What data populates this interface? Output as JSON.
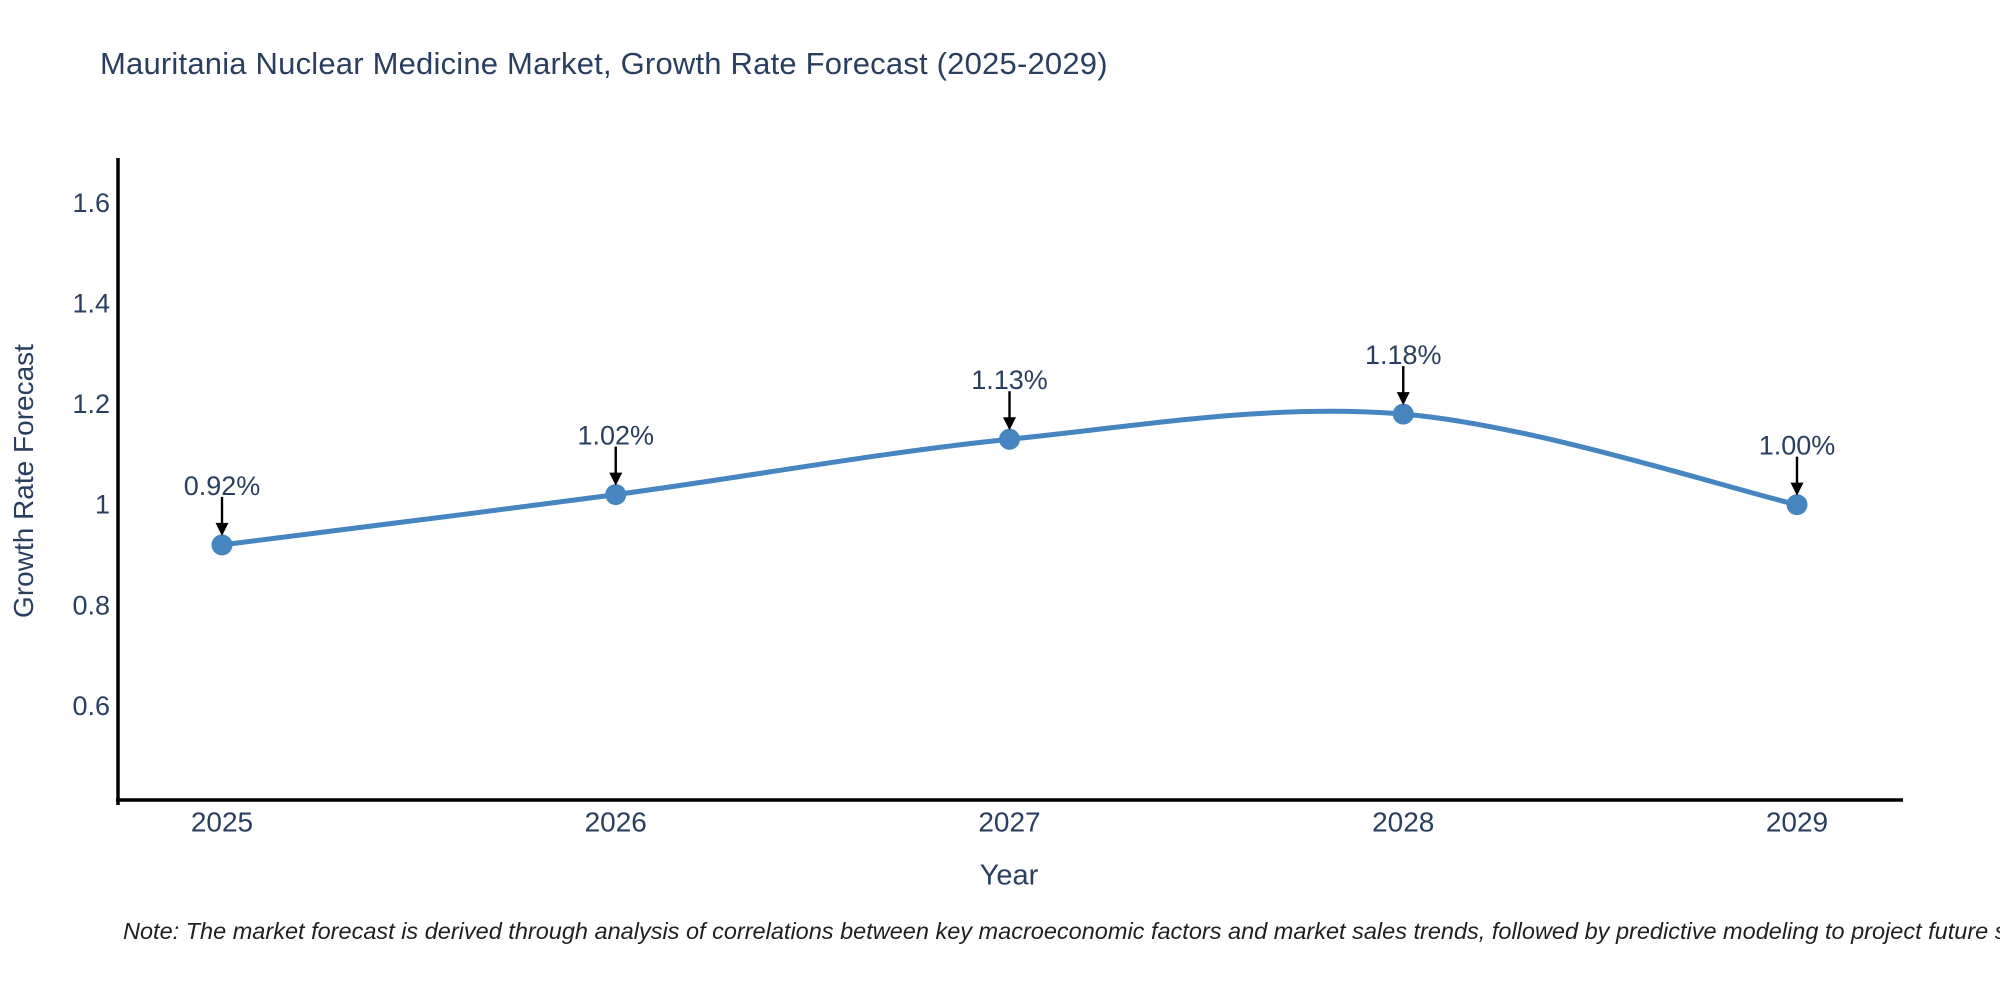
{
  "page": {
    "note": "Note: The market forecast is derived through analysis of correlations between key macroeconomic factors and market sales trends, followed by predictive modeling to project future sales"
  },
  "chart_data": {
    "type": "line",
    "title": "Mauritania Nuclear Medicine Market, Growth Rate Forecast (2025-2029)",
    "xlabel": "Year",
    "ylabel": "Growth Rate Forecast",
    "categories": [
      "2025",
      "2026",
      "2027",
      "2028",
      "2029"
    ],
    "series": [
      {
        "name": "Growth Rate Forecast",
        "values": [
          0.92,
          1.02,
          1.13,
          1.18,
          1.0
        ],
        "point_labels": [
          "0.92%",
          "1.02%",
          "1.13%",
          "1.18%",
          "1.00%"
        ]
      }
    ],
    "y_ticks": [
      {
        "value": 0.6,
        "label": "0.6"
      },
      {
        "value": 0.8,
        "label": "0.8"
      },
      {
        "value": 1.0,
        "label": "1"
      },
      {
        "value": 1.2,
        "label": "1.2"
      },
      {
        "value": 1.4,
        "label": "1.4"
      },
      {
        "value": 1.6,
        "label": "1.6"
      }
    ],
    "ylim": [
      0.413,
      1.685
    ],
    "grid": false,
    "legend": "none",
    "line_shape": "spline",
    "annotation_style": "value label above each point with a black arrow pointing down to the marker",
    "colors": {
      "line": "#4685c0",
      "marker": "#4685c0",
      "arrow": "#000000",
      "axis_line": "#000000",
      "chart_text": "#2a3f5f",
      "note_text": "#1f1f1f",
      "background": "#ffffff"
    }
  }
}
